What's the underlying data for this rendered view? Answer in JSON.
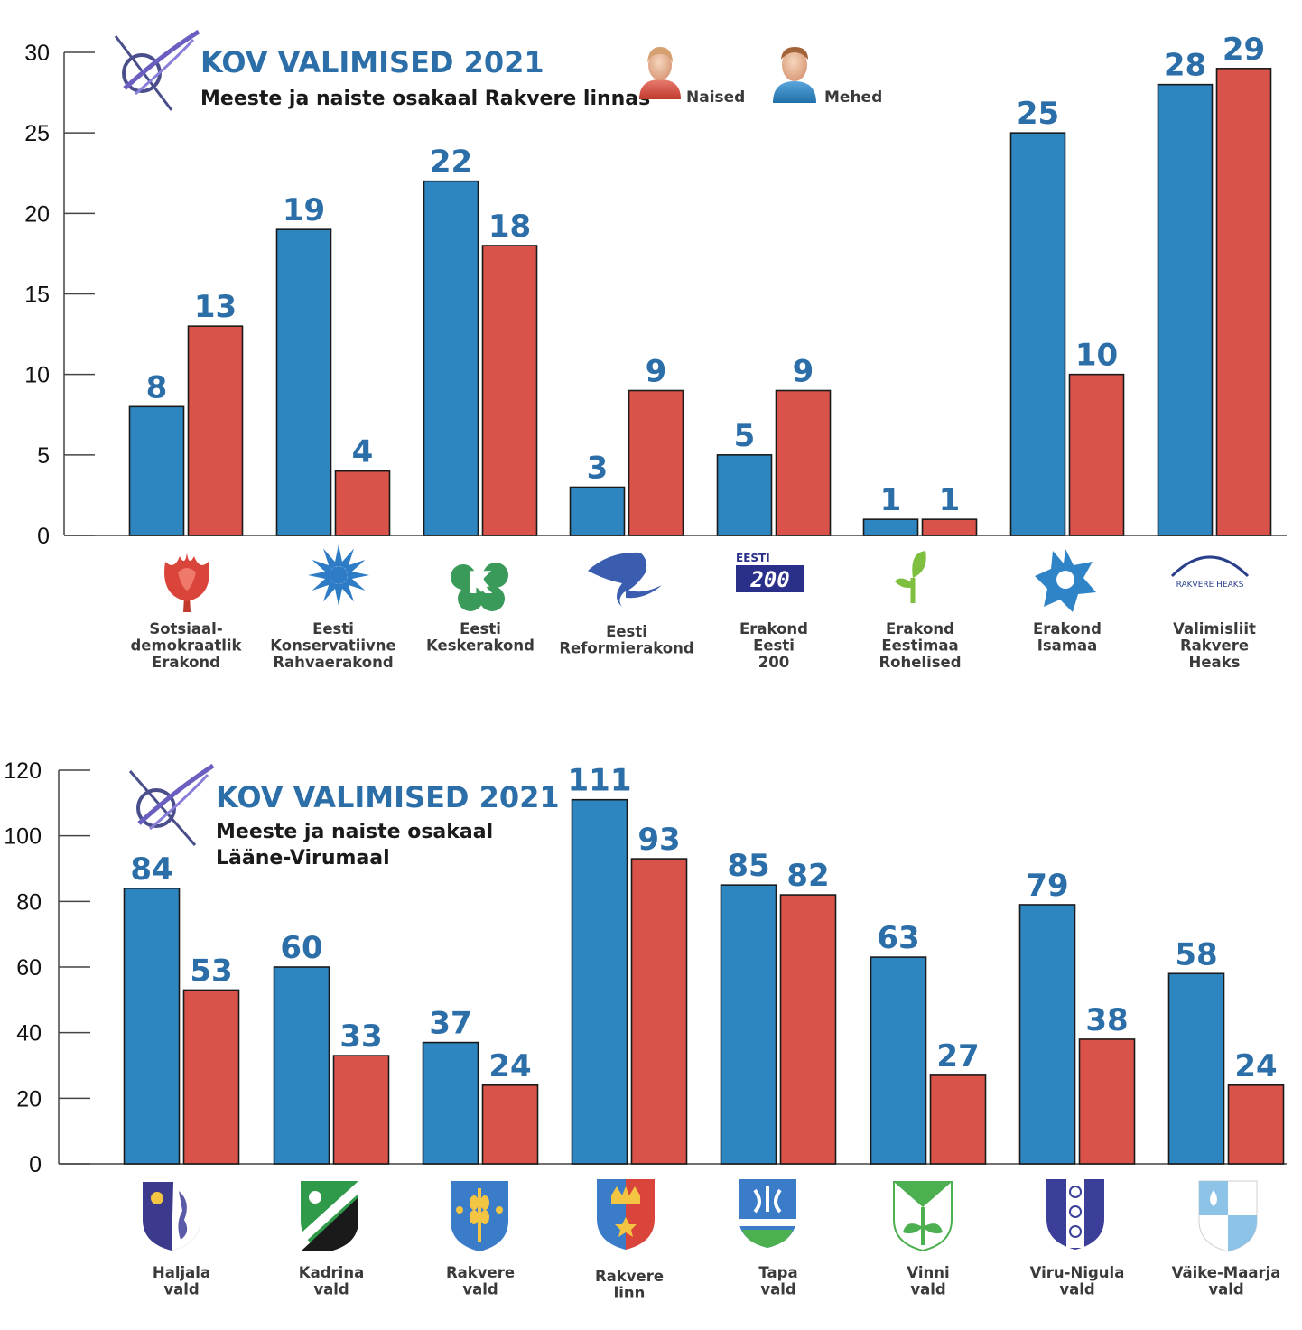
{
  "colors": {
    "men": "#2e86c1",
    "women": "#d9534a",
    "value_text": "#2b6ea8",
    "axis": "#444444"
  },
  "legend": {
    "women_label": "Naised",
    "men_label": "Mehed"
  },
  "chart_data": [
    {
      "type": "bar",
      "title": "KOV VALIMISED 2021",
      "subtitle": "Meeste ja naiste osakaal Rakvere linnas",
      "ylim": [
        0,
        30
      ],
      "yticks": [
        0,
        5,
        10,
        15,
        20,
        25,
        30
      ],
      "categories": [
        "Sotsiaal-\ndemokraatlik\nErakond",
        "Eesti\nKonservatiivne\nRahvaerakond",
        "Eesti\nKeskerakond",
        "Eesti\nReformierakond",
        "Erakond\nEesti\n200",
        "Erakond\nEestimaa\nRohelised",
        "Erakond\nIsamaa",
        "Valimisliit\nRakvere\nHeaks"
      ],
      "logos": [
        "rose-logo",
        "cornflower-logo",
        "keskerakond-logo",
        "squirrel-logo",
        "eesti200-logo",
        "sprout-logo",
        "star-logo",
        "rakvere-heaks-logo"
      ],
      "logo_text": {
        "eesti200_top": "EESTI",
        "eesti200_digits": "200",
        "rakvere_heaks": "RAKVERE HEAKS"
      },
      "series": [
        {
          "name": "Mehed",
          "values": [
            8,
            19,
            22,
            3,
            5,
            1,
            25,
            28
          ]
        },
        {
          "name": "Naised",
          "values": [
            13,
            4,
            18,
            9,
            9,
            1,
            10,
            29
          ]
        }
      ]
    },
    {
      "type": "bar",
      "title": "KOV VALIMISED 2021",
      "subtitle": "Meeste ja naiste osakaal\nLääne-Virumaal",
      "ylim": [
        0,
        120
      ],
      "yticks": [
        0,
        20,
        40,
        60,
        80,
        100,
        120
      ],
      "categories": [
        "Haljala\nvald",
        "Kadrina\nvald",
        "Rakvere\nvald",
        "Rakvere\nlinn",
        "Tapa\nvald",
        "Vinni\nvald",
        "Viru-Nigula\nvald",
        "Väike-Maarja\nvald"
      ],
      "logos": [
        "haljala-crest",
        "kadrina-crest",
        "rakvere-vald-crest",
        "rakvere-linn-crest",
        "tapa-crest",
        "vinni-crest",
        "viru-nigula-crest",
        "vaike-maarja-crest"
      ],
      "series": [
        {
          "name": "Mehed",
          "values": [
            84,
            60,
            37,
            111,
            85,
            63,
            79,
            58
          ]
        },
        {
          "name": "Naised",
          "values": [
            53,
            33,
            24,
            93,
            82,
            27,
            38,
            24
          ]
        }
      ]
    }
  ]
}
